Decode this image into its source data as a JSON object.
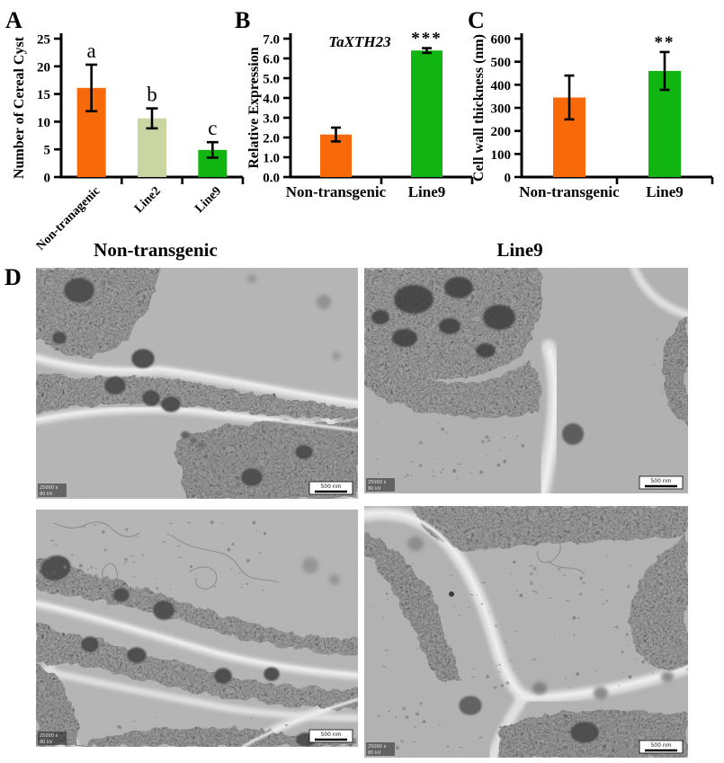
{
  "figure": {
    "panels": {
      "a": "A",
      "b": "B",
      "c": "C",
      "d": "D"
    },
    "colors": {
      "orange": "#f8690a",
      "light_green": "#c9d6a2",
      "green": "#11b511",
      "axis": "#000000"
    }
  },
  "chart_data": [
    {
      "id": "cereal-cyst-count",
      "type": "bar",
      "title": "",
      "ylabel": "Number of Cereal Cyst",
      "xlabel": "",
      "categories": [
        "Non-tranagenic",
        "Line2",
        "Line9"
      ],
      "values": [
        16.1,
        10.6,
        4.9
      ],
      "errors": [
        4.2,
        1.8,
        1.4
      ],
      "bar_colors": [
        "#f8690a",
        "#c9d6a2",
        "#11b511"
      ],
      "sig_labels": [
        "a",
        "b",
        "c"
      ],
      "ylim": [
        0,
        25
      ],
      "ytick_step": 5,
      "yticks": [
        "0",
        "5",
        "10",
        "15",
        "20",
        "25"
      ],
      "grid": false,
      "xlabel_rotation": 45
    },
    {
      "id": "relative-expression",
      "type": "bar",
      "title": "",
      "annotation": "TaXTH23",
      "ylabel": "Relative Expression",
      "xlabel": "",
      "categories": [
        "Non-transgenic",
        "Line9"
      ],
      "values": [
        2.15,
        6.4
      ],
      "errors": [
        0.35,
        0.12
      ],
      "bar_colors": [
        "#f8690a",
        "#11b511"
      ],
      "sig_labels": [
        "",
        "***"
      ],
      "ylim": [
        0,
        7
      ],
      "ytick_step": 1,
      "yticks": [
        "0.0",
        "1.0",
        "2.0",
        "3.0",
        "4.0",
        "5.0",
        "6.0",
        "7.0"
      ],
      "grid": false,
      "xlabel_rotation": 0
    },
    {
      "id": "cell-wall-thickness",
      "type": "bar",
      "title": "",
      "ylabel": "Cell wall thickness (nm)",
      "xlabel": "",
      "categories": [
        "Non-transgenic",
        "Line9"
      ],
      "values": [
        345,
        460
      ],
      "errors": [
        95,
        82
      ],
      "bar_colors": [
        "#f8690a",
        "#11b511"
      ],
      "sig_labels": [
        "",
        "**"
      ],
      "ylim": [
        0,
        600
      ],
      "ytick_step": 100,
      "yticks": [
        "0",
        "100",
        "200",
        "300",
        "400",
        "500",
        "600"
      ],
      "grid": false,
      "xlabel_rotation": 0
    }
  ],
  "panel_d": {
    "headers": [
      "Non-transgenic",
      "Line9"
    ],
    "micrographs": [
      {
        "magnification": "25000 x",
        "voltage": "80 kV",
        "scale_bar": "500 nm"
      },
      {
        "magnification": "25000 x",
        "voltage": "80 kV",
        "scale_bar": "500 nm"
      },
      {
        "magnification": "25000 x",
        "voltage": "80 kV",
        "scale_bar": "500 nm"
      },
      {
        "magnification": "25000 x",
        "voltage": "80 kV",
        "scale_bar": "500 nm"
      }
    ]
  }
}
